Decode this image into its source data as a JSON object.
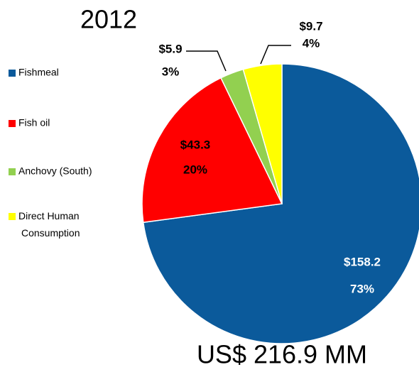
{
  "chart_data": {
    "type": "pie",
    "title": "2012",
    "total_label": "US$ 216.9 MM",
    "categories": [
      "Fishmeal",
      "Fish oil",
      "Anchovy (South)",
      "Direct Human Consumption"
    ],
    "values": [
      158.2,
      43.3,
      5.9,
      9.7
    ],
    "value_labels": [
      "$158.2",
      "$43.3",
      "$5.9",
      "$9.7"
    ],
    "percent_labels": [
      "73%",
      "20%",
      "3%",
      "4%"
    ],
    "colors": [
      "#0b5a9b",
      "#ff0000",
      "#92d050",
      "#ffff00"
    ],
    "legend": "left"
  }
}
